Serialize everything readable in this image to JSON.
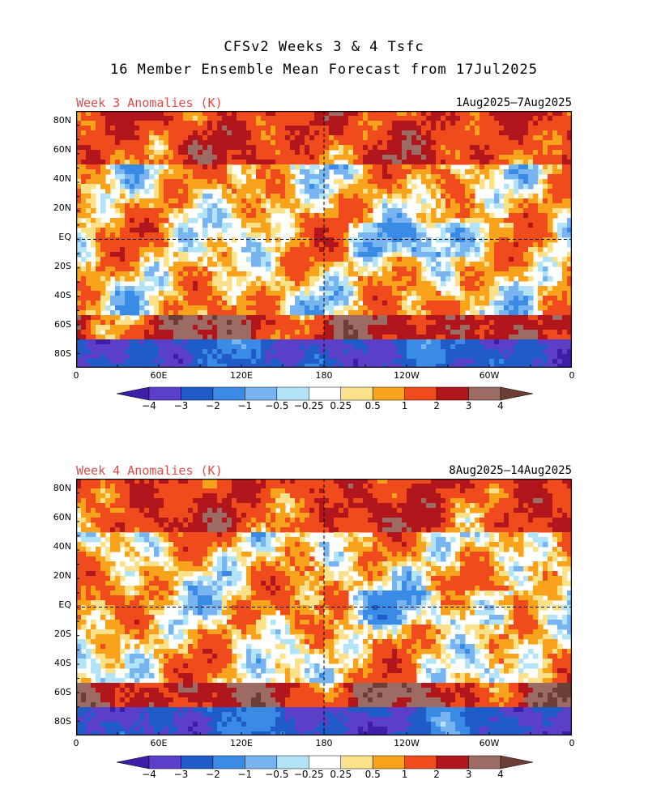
{
  "title_line1": "CFSv2 Weeks 3 & 4 Tsfc",
  "title_line2": "16 Member Ensemble Mean Forecast from 17Jul2025",
  "panels": [
    {
      "label": "Week 3 Anomalies (K)",
      "date_range": "1Aug2025—7Aug2025",
      "seed": 3
    },
    {
      "label": "Week 4 Anomalies (K)",
      "date_range": "8Aug2025—14Aug2025",
      "seed": 7
    }
  ],
  "lat_labels": [
    "80N",
    "60N",
    "40N",
    "20N",
    "EQ",
    "20S",
    "40S",
    "60S",
    "80S"
  ],
  "lon_labels": [
    "0",
    "60E",
    "120E",
    "180",
    "120W",
    "60W",
    "0"
  ],
  "colorbar": {
    "labels": [
      "−4",
      "−3",
      "−2",
      "−1",
      "−0.5",
      "−0.25",
      "0.25",
      "0.5",
      "1",
      "2",
      "3",
      "4"
    ],
    "colors": [
      "#3c1fa6",
      "#5b3fc9",
      "#1f5cc9",
      "#3a8be6",
      "#78b4f0",
      "#b3e3f7",
      "#ffffff",
      "#fbe18a",
      "#f9a21b",
      "#ef4b1d",
      "#b0161c",
      "#9c6b63",
      "#6b3e36"
    ]
  }
}
